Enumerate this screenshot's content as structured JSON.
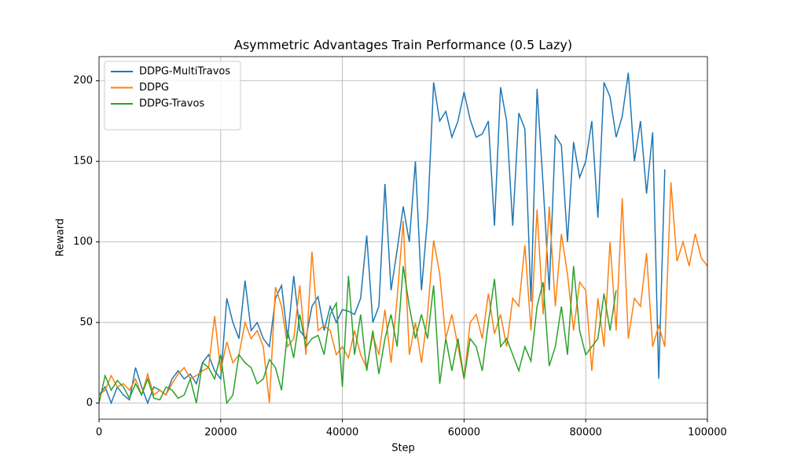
{
  "chart_data": {
    "type": "line",
    "title": "Asymmetric Advantages Train Performance (0.5 Lazy)",
    "x_label": "Step",
    "y_label": "Reward",
    "x": [
      0,
      1000,
      2000,
      3000,
      4000,
      5000,
      6000,
      7000,
      8000,
      9000,
      10000,
      11000,
      12000,
      13000,
      14000,
      15000,
      16000,
      17000,
      18000,
      19000,
      20000,
      21000,
      22000,
      23000,
      24000,
      25000,
      26000,
      27000,
      28000,
      29000,
      30000,
      31000,
      32000,
      33000,
      34000,
      35000,
      36000,
      37000,
      38000,
      39000,
      40000,
      41000,
      42000,
      43000,
      44000,
      45000,
      46000,
      47000,
      48000,
      49000,
      50000,
      51000,
      52000,
      53000,
      54000,
      55000,
      56000,
      57000,
      58000,
      59000,
      60000,
      61000,
      62000,
      63000,
      64000,
      65000,
      66000,
      67000,
      68000,
      69000,
      70000,
      71000,
      72000,
      73000,
      74000,
      75000,
      76000,
      77000,
      78000,
      79000,
      80000,
      81000,
      82000,
      83000,
      84000,
      85000,
      86000,
      87000,
      88000,
      89000,
      90000,
      91000,
      92000,
      93000,
      94000,
      95000,
      96000,
      97000,
      98000,
      99000,
      100000
    ],
    "series": [
      {
        "name": "DDPG-MultiTravos",
        "color": "#1f77b4",
        "values": [
          5,
          10,
          0,
          10,
          5,
          2,
          22,
          10,
          0,
          10,
          8,
          5,
          15,
          20,
          15,
          18,
          12,
          25,
          30,
          20,
          15,
          65,
          50,
          40,
          76,
          45,
          50,
          40,
          35,
          65,
          73,
          40,
          79,
          45,
          40,
          60,
          66,
          45,
          60,
          50,
          58,
          57,
          55,
          65,
          104,
          50,
          60,
          136,
          70,
          95,
          122,
          100,
          150,
          70,
          115,
          199,
          175,
          181,
          165,
          175,
          193,
          176,
          165,
          167,
          175,
          110,
          196,
          175,
          110,
          180,
          170,
          63,
          195,
          135,
          70,
          166,
          160,
          100,
          162,
          140,
          150,
          175,
          115,
          199,
          190,
          165,
          178,
          205,
          150,
          175,
          130,
          168,
          15,
          145,
          null,
          null,
          null,
          null,
          null,
          null,
          null
        ]
      },
      {
        "name": "DDPG",
        "color": "#ff7f0e",
        "values": [
          5,
          8,
          17,
          10,
          12,
          8,
          15,
          5,
          18,
          5,
          8,
          5,
          12,
          18,
          22,
          15,
          17,
          20,
          22,
          54,
          20,
          38,
          25,
          30,
          50,
          40,
          45,
          35,
          0,
          72,
          60,
          35,
          40,
          73,
          30,
          94,
          45,
          48,
          45,
          30,
          35,
          28,
          45,
          30,
          22,
          42,
          30,
          58,
          25,
          65,
          113,
          30,
          50,
          25,
          55,
          101,
          80,
          40,
          55,
          35,
          15,
          50,
          55,
          40,
          68,
          43,
          55,
          35,
          65,
          60,
          98,
          45,
          120,
          55,
          122,
          60,
          105,
          80,
          45,
          75,
          70,
          20,
          65,
          35,
          100,
          45,
          127,
          40,
          65,
          60,
          93,
          35,
          48,
          35,
          137,
          88,
          100,
          85,
          105,
          90,
          85
        ]
      },
      {
        "name": "DDPG-Travos",
        "color": "#2ca02c",
        "values": [
          0,
          17,
          8,
          14,
          10,
          3,
          12,
          5,
          15,
          3,
          2,
          10,
          8,
          3,
          5,
          15,
          0,
          25,
          22,
          15,
          30,
          0,
          5,
          30,
          25,
          22,
          12,
          15,
          27,
          22,
          8,
          45,
          28,
          55,
          35,
          40,
          42,
          30,
          55,
          62,
          10,
          79,
          30,
          55,
          20,
          45,
          18,
          40,
          55,
          35,
          85,
          60,
          40,
          55,
          40,
          73,
          12,
          40,
          20,
          40,
          15,
          40,
          35,
          20,
          50,
          77,
          35,
          40,
          30,
          20,
          35,
          26,
          60,
          75,
          23,
          35,
          60,
          30,
          85,
          45,
          30,
          35,
          40,
          68,
          45,
          70,
          null,
          null,
          null,
          null,
          null,
          null,
          null,
          null,
          null,
          null,
          null,
          null,
          null,
          null,
          null
        ]
      }
    ],
    "xlim": [
      0,
      100000
    ],
    "ylim": [
      -10,
      215
    ],
    "xticks": [
      0,
      20000,
      40000,
      60000,
      80000,
      100000
    ],
    "yticks": [
      0,
      50,
      100,
      150,
      200
    ],
    "grid": true,
    "legend": "upper left"
  }
}
